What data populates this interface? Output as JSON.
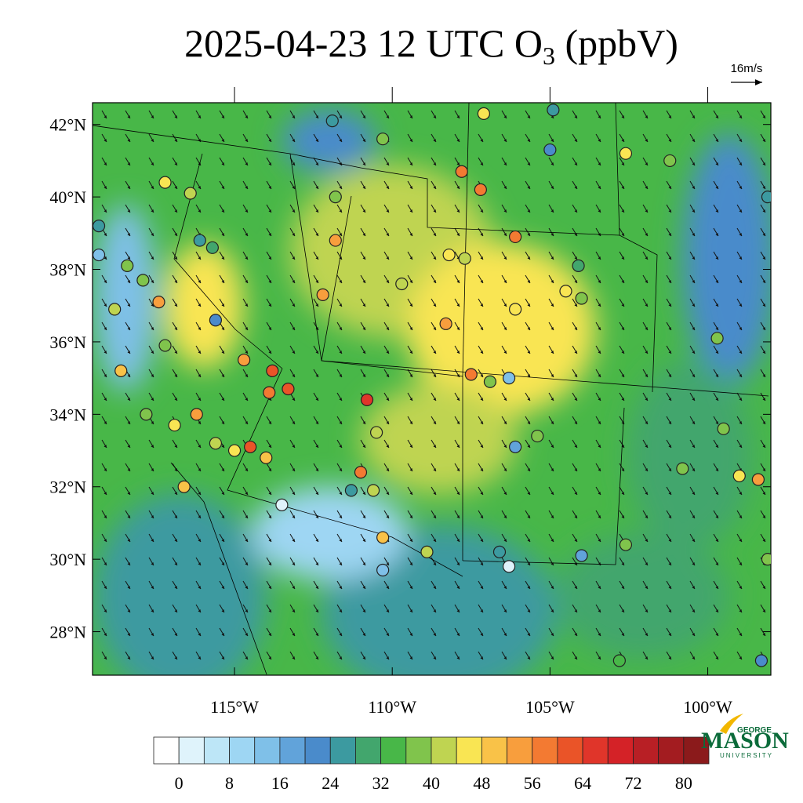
{
  "title": {
    "main": "2025-04-23 12 UTC O",
    "sub": "3",
    "unit": " (ppbV)"
  },
  "wind_reference": "16m/s",
  "map": {
    "xlim": [
      -119.5,
      -98
    ],
    "ylim": [
      26.8,
      42.6
    ],
    "lat_ticks": [
      {
        "value": 42,
        "label": "42°N"
      },
      {
        "value": 40,
        "label": "40°N"
      },
      {
        "value": 38,
        "label": "38°N"
      },
      {
        "value": 36,
        "label": "36°N"
      },
      {
        "value": 34,
        "label": "34°N"
      },
      {
        "value": 32,
        "label": "32°N"
      },
      {
        "value": 30,
        "label": "30°N"
      },
      {
        "value": 28,
        "label": "28°N"
      }
    ],
    "lon_ticks": [
      {
        "value": -115,
        "label": "115°W"
      },
      {
        "value": -110,
        "label": "110°W"
      },
      {
        "value": -105,
        "label": "105°W"
      },
      {
        "value": -100,
        "label": "100°W"
      }
    ],
    "stations": [
      {
        "lon": -111.9,
        "lat": 42.1,
        "value": 26
      },
      {
        "lon": -110.3,
        "lat": 41.6,
        "value": 38
      },
      {
        "lon": -107.1,
        "lat": 42.3,
        "value": 46
      },
      {
        "lon": -104.9,
        "lat": 42.4,
        "value": 24
      },
      {
        "lon": -105.0,
        "lat": 41.3,
        "value": 22
      },
      {
        "lon": -102.6,
        "lat": 41.2,
        "value": 44
      },
      {
        "lon": -101.2,
        "lat": 41.0,
        "value": 38
      },
      {
        "lon": -117.2,
        "lat": 40.4,
        "value": 47
      },
      {
        "lon": -116.4,
        "lat": 40.1,
        "value": 43
      },
      {
        "lon": -111.8,
        "lat": 40.0,
        "value": 36
      },
      {
        "lon": -107.8,
        "lat": 40.7,
        "value": 57
      },
      {
        "lon": -107.2,
        "lat": 40.2,
        "value": 58
      },
      {
        "lon": -106.1,
        "lat": 38.9,
        "value": 59
      },
      {
        "lon": -116.1,
        "lat": 38.8,
        "value": 26
      },
      {
        "lon": -115.7,
        "lat": 38.6,
        "value": 30
      },
      {
        "lon": -111.8,
        "lat": 38.8,
        "value": 56
      },
      {
        "lon": -108.2,
        "lat": 38.4,
        "value": 45
      },
      {
        "lon": -107.7,
        "lat": 38.3,
        "value": 40
      },
      {
        "lon": -104.1,
        "lat": 38.1,
        "value": 31
      },
      {
        "lon": -118.4,
        "lat": 38.1,
        "value": 38
      },
      {
        "lon": -117.9,
        "lat": 37.7,
        "value": 36
      },
      {
        "lon": -117.4,
        "lat": 37.1,
        "value": 55
      },
      {
        "lon": -112.2,
        "lat": 37.3,
        "value": 53
      },
      {
        "lon": -109.7,
        "lat": 37.6,
        "value": 40
      },
      {
        "lon": -104.5,
        "lat": 37.4,
        "value": 46
      },
      {
        "lon": -104.0,
        "lat": 37.2,
        "value": 36
      },
      {
        "lon": -106.1,
        "lat": 36.9,
        "value": 47
      },
      {
        "lon": -108.3,
        "lat": 36.5,
        "value": 54
      },
      {
        "lon": -115.6,
        "lat": 36.6,
        "value": 22
      },
      {
        "lon": -117.2,
        "lat": 35.9,
        "value": 38
      },
      {
        "lon": -114.7,
        "lat": 35.5,
        "value": 55
      },
      {
        "lon": -113.8,
        "lat": 35.2,
        "value": 61
      },
      {
        "lon": -113.3,
        "lat": 34.7,
        "value": 61
      },
      {
        "lon": -113.9,
        "lat": 34.6,
        "value": 58
      },
      {
        "lon": -110.8,
        "lat": 34.4,
        "value": 64
      },
      {
        "lon": -107.5,
        "lat": 35.1,
        "value": 59
      },
      {
        "lon": -106.9,
        "lat": 34.9,
        "value": 38
      },
      {
        "lon": -106.3,
        "lat": 35.0,
        "value": 15
      },
      {
        "lon": -116.2,
        "lat": 34.0,
        "value": 54
      },
      {
        "lon": -115.6,
        "lat": 33.2,
        "value": 41
      },
      {
        "lon": -115.0,
        "lat": 33.0,
        "value": 44
      },
      {
        "lon": -114.5,
        "lat": 33.1,
        "value": 60
      },
      {
        "lon": -114.0,
        "lat": 32.8,
        "value": 48
      },
      {
        "lon": -110.5,
        "lat": 33.5,
        "value": 42
      },
      {
        "lon": -111.0,
        "lat": 32.4,
        "value": 57
      },
      {
        "lon": -111.3,
        "lat": 31.9,
        "value": 26
      },
      {
        "lon": -110.6,
        "lat": 31.9,
        "value": 40
      },
      {
        "lon": -106.1,
        "lat": 33.1,
        "value": 19
      },
      {
        "lon": -105.4,
        "lat": 33.4,
        "value": 38
      },
      {
        "lon": -113.5,
        "lat": 31.5,
        "value": 3
      },
      {
        "lon": -110.3,
        "lat": 30.6,
        "value": 48
      },
      {
        "lon": -110.3,
        "lat": 29.7,
        "value": 14
      },
      {
        "lon": -108.9,
        "lat": 30.2,
        "value": 42
      },
      {
        "lon": -106.3,
        "lat": 29.8,
        "value": 2
      },
      {
        "lon": -106.6,
        "lat": 30.2,
        "value": 26
      },
      {
        "lon": -104.0,
        "lat": 30.1,
        "value": 18
      },
      {
        "lon": -102.6,
        "lat": 30.4,
        "value": 37
      },
      {
        "lon": -100.8,
        "lat": 32.5,
        "value": 39
      },
      {
        "lon": -99.0,
        "lat": 32.3,
        "value": 45
      },
      {
        "lon": -98.4,
        "lat": 32.2,
        "value": 53
      },
      {
        "lon": -99.5,
        "lat": 33.6,
        "value": 36
      },
      {
        "lon": -99.7,
        "lat": 36.1,
        "value": 38
      },
      {
        "lon": -98.1,
        "lat": 40.0,
        "value": 25
      },
      {
        "lon": -98.3,
        "lat": 27.2,
        "value": 20
      },
      {
        "lon": -102.8,
        "lat": 27.2,
        "value": 32
      },
      {
        "lon": -98.1,
        "lat": 30.0,
        "value": 37
      },
      {
        "lon": -119.3,
        "lat": 39.2,
        "value": 26
      },
      {
        "lon": -119.3,
        "lat": 38.4,
        "value": 14
      },
      {
        "lon": -118.8,
        "lat": 36.9,
        "value": 42
      },
      {
        "lon": -117.8,
        "lat": 34.0,
        "value": 36
      },
      {
        "lon": -116.9,
        "lat": 33.7,
        "value": 47
      },
      {
        "lon": -116.6,
        "lat": 32.0,
        "value": 51
      },
      {
        "lon": -118.6,
        "lat": 35.2,
        "value": 48
      }
    ]
  },
  "colorbar": {
    "lim": [
      -4,
      84
    ],
    "ticks": [
      0,
      8,
      16,
      24,
      32,
      40,
      48,
      56,
      64,
      72,
      80
    ],
    "colors": [
      "#ffffff",
      "#dff3fb",
      "#bde6f7",
      "#9ed6f3",
      "#7fc0e8",
      "#61a3da",
      "#4a8bcb",
      "#3c9aa0",
      "#42a66d",
      "#48b748",
      "#80c44c",
      "#bfd451",
      "#f9e553",
      "#f9c248",
      "#f89e3d",
      "#f37a32",
      "#ea5428",
      "#e0352a",
      "#d42227",
      "#b81f25",
      "#a31c20",
      "#8b1a1b"
    ]
  },
  "logo": {
    "top": "GEORGE",
    "name": "MASON",
    "bottom": "UNIVERSITY"
  }
}
